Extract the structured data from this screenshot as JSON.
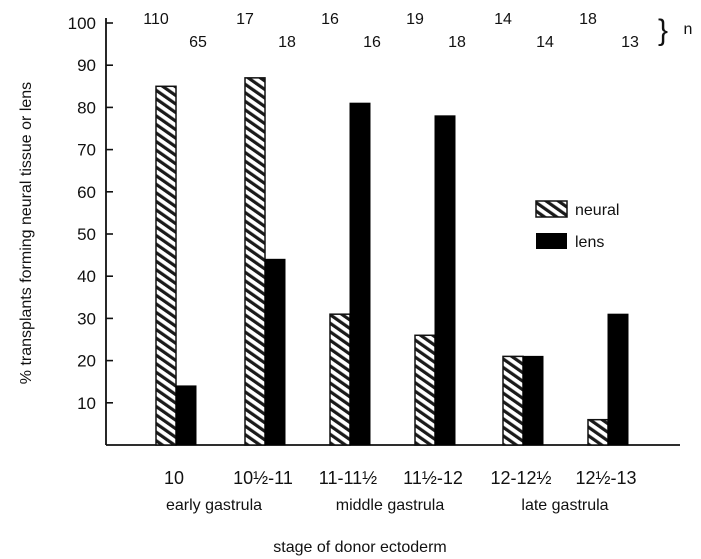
{
  "chart_data": {
    "type": "bar",
    "ylabel": "% transplants forming neural tissue or lens",
    "xlabel": "stage of donor ectoderm",
    "ylim": [
      0,
      100
    ],
    "yticks": [
      "10",
      "20",
      "30",
      "40",
      "50",
      "60",
      "70",
      "80",
      "90",
      "100"
    ],
    "categories": [
      "10",
      "10½-11",
      "11-11½",
      "11½-12",
      "12-12½",
      "12½-13"
    ],
    "groups": [
      {
        "label": "early gastrula"
      },
      {
        "label": "middle gastrula"
      },
      {
        "label": "late gastrula"
      }
    ],
    "series": [
      {
        "name": "neural",
        "pattern": "hatched",
        "values": [
          85,
          87,
          31,
          26,
          21,
          6
        ],
        "n": [
          "110",
          "17",
          "16",
          "19",
          "14",
          "18"
        ]
      },
      {
        "name": "lens",
        "color": "#000000",
        "values": [
          14,
          44,
          81,
          78,
          21,
          31
        ],
        "n": [
          "65",
          "18",
          "16",
          "18",
          "14",
          "13"
        ]
      }
    ],
    "n_label": "n",
    "legend_position": "right",
    "grid": false
  }
}
